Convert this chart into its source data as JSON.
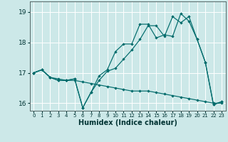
{
  "xlabel": "Humidex (Indice chaleur)",
  "bg_color": "#cce8e8",
  "grid_color": "#ffffff",
  "line_color": "#006b6b",
  "xlim": [
    -0.5,
    23.5
  ],
  "ylim": [
    15.75,
    19.35
  ],
  "yticks": [
    16,
    17,
    18,
    19
  ],
  "xticks": [
    0,
    1,
    2,
    3,
    4,
    5,
    6,
    7,
    8,
    9,
    10,
    11,
    12,
    13,
    14,
    15,
    16,
    17,
    18,
    19,
    20,
    21,
    22,
    23
  ],
  "line1_x": [
    0,
    1,
    2,
    3,
    4,
    5,
    6,
    7,
    8,
    9,
    10,
    11,
    12,
    13,
    14,
    15,
    16,
    17,
    18,
    19,
    20,
    21,
    22,
    23
  ],
  "line1_y": [
    17.0,
    17.1,
    16.85,
    16.75,
    16.75,
    16.8,
    15.85,
    16.35,
    16.9,
    17.1,
    17.7,
    17.95,
    17.95,
    18.6,
    18.6,
    18.15,
    18.25,
    18.2,
    18.95,
    18.7,
    18.1,
    17.35,
    15.95,
    16.05
  ],
  "line2_x": [
    0,
    1,
    2,
    3,
    4,
    5,
    6,
    7,
    8,
    9,
    10,
    11,
    12,
    13,
    14,
    15,
    16,
    17,
    18,
    19,
    20,
    21,
    22,
    23
  ],
  "line2_y": [
    17.0,
    17.1,
    16.85,
    16.75,
    16.75,
    16.8,
    15.85,
    16.35,
    16.75,
    17.05,
    17.15,
    17.45,
    17.75,
    18.1,
    18.55,
    18.55,
    18.2,
    18.85,
    18.65,
    18.85,
    18.1,
    17.35,
    15.95,
    16.05
  ],
  "line3_x": [
    0,
    1,
    2,
    3,
    4,
    5,
    6,
    7,
    8,
    9,
    10,
    11,
    12,
    13,
    14,
    15,
    16,
    17,
    18,
    19,
    20,
    21,
    22,
    23
  ],
  "line3_y": [
    17.0,
    17.1,
    16.85,
    16.8,
    16.75,
    16.75,
    16.7,
    16.65,
    16.6,
    16.55,
    16.5,
    16.45,
    16.4,
    16.4,
    16.4,
    16.35,
    16.3,
    16.25,
    16.2,
    16.15,
    16.1,
    16.05,
    16.0,
    16.0
  ]
}
